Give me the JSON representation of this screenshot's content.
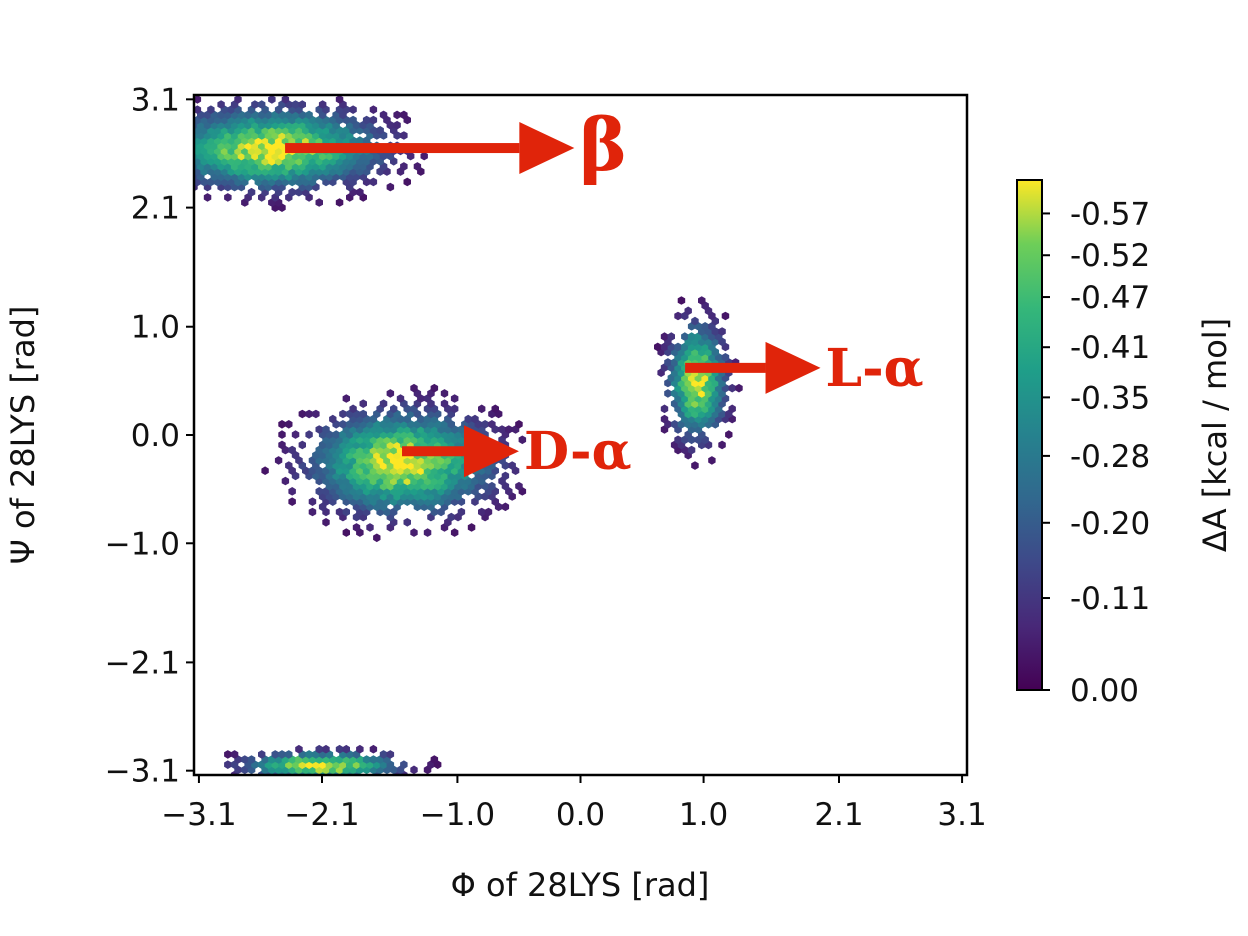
{
  "chart_data": {
    "type": "heatmap",
    "subtype": "hexbin free-energy (Ramachandran) plot",
    "title": "",
    "xlabel": "Φ of 28LYS [rad]",
    "ylabel": "Ψ of 28LYS [rad]",
    "xlim": [
      -3.14,
      3.14
    ],
    "ylim": [
      -3.14,
      3.14
    ],
    "x_ticks": [
      -3.1,
      -2.1,
      -1.0,
      0.0,
      1.0,
      2.1,
      3.1
    ],
    "x_tick_labels": [
      "−3.1",
      "−2.1",
      "−1.0",
      "0.0",
      "1.0",
      "2.1",
      "3.1"
    ],
    "y_ticks": [
      -3.1,
      -2.1,
      -1.0,
      0.0,
      1.0,
      2.1,
      3.1
    ],
    "y_tick_labels": [
      "−3.1",
      "−2.1",
      "−1.0",
      "0.0",
      "1.0",
      "2.1",
      "3.1"
    ],
    "grid": false,
    "colormap": "viridis",
    "colorbar": {
      "label": "ΔA [kcal / mol]",
      "ticks": [
        0.0,
        -0.11,
        -0.2,
        -0.28,
        -0.35,
        -0.41,
        -0.47,
        -0.52,
        -0.57
      ],
      "tick_labels": [
        "0.00",
        "-0.11",
        "-0.20",
        "-0.28",
        "-0.35",
        "-0.41",
        "-0.47",
        "-0.52",
        "-0.57"
      ],
      "range": [
        0.0,
        -0.61
      ]
    },
    "basins": [
      {
        "name": "β",
        "phi_center": -2.5,
        "psi_center": 2.65,
        "phi_spread": 0.85,
        "psi_spread": 0.35,
        "min_value": -0.6
      },
      {
        "name": "D-α",
        "phi_center": -1.45,
        "psi_center": -0.25,
        "phi_spread": 0.7,
        "psi_spread": 0.45,
        "min_value": -0.6
      },
      {
        "name": "L-α",
        "phi_center": 0.95,
        "psi_center": 0.5,
        "phi_spread": 0.22,
        "psi_spread": 0.5,
        "min_value": -0.55
      },
      {
        "name": "",
        "phi_center": -2.1,
        "psi_center": -3.05,
        "phi_spread": 0.6,
        "psi_spread": 0.12,
        "min_value": -0.3
      }
    ],
    "annotations": [
      {
        "text": "β",
        "arrow_from": [
          -2.4,
          2.65
        ],
        "arrow_to": [
          -0.05,
          2.65
        ],
        "color": "#e0240a"
      },
      {
        "text": "D-α",
        "arrow_from": [
          -1.45,
          -0.15
        ],
        "arrow_to": [
          -0.5,
          -0.15
        ],
        "color": "#e0240a"
      },
      {
        "text": "L-α",
        "arrow_from": [
          0.85,
          0.62
        ],
        "arrow_to": [
          1.95,
          0.62
        ],
        "color": "#e0240a"
      }
    ],
    "colors": {
      "arrow": "#e0240a",
      "axes": "#000000"
    }
  }
}
